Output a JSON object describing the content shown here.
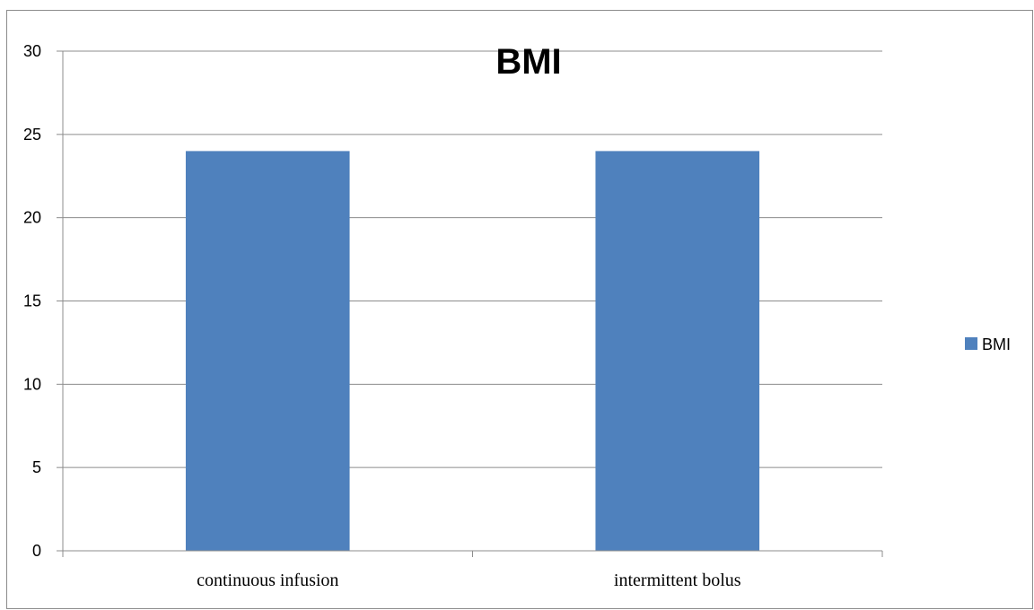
{
  "chart_data": {
    "type": "bar",
    "title": "BMI",
    "categories": [
      "continuous infusion",
      "intermittent bolus"
    ],
    "series": [
      {
        "name": "BMI",
        "values": [
          24,
          24
        ],
        "color": "#4f81bd"
      }
    ],
    "ylim": [
      0,
      30
    ],
    "yticks": [
      0,
      5,
      10,
      15,
      20,
      25,
      30
    ],
    "xlabel": "",
    "ylabel": "",
    "grid": true,
    "legend": "right"
  }
}
